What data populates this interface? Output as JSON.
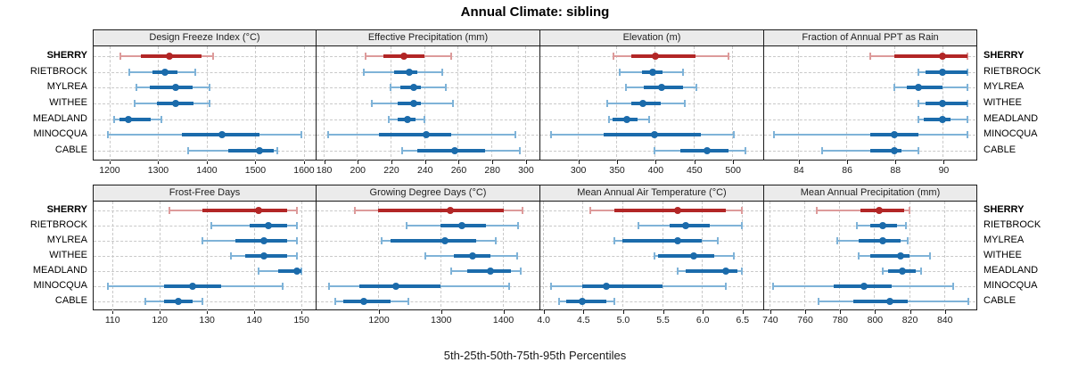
{
  "colors": {
    "series_blue": "#1b6bab",
    "series_blue_light": "#7fb3d8",
    "highlight_red": "#b22626",
    "highlight_red_light": "#dd9b9b",
    "strip_bg": "#ebebeb",
    "panel_border": "#1a1a1a",
    "grid": "#c9c9c9",
    "background": "#ffffff"
  },
  "chart_data": {
    "type": "scatter",
    "subtype": "trellis-percentile-dotplot",
    "title": "Annual Climate: sibling",
    "xlabel": "5th-25th-50th-75th-95th Percentiles",
    "legend_position": "none",
    "grid": "dashed",
    "percentiles": [
      5,
      25,
      50,
      75,
      95
    ],
    "stations": [
      "SHERRY",
      "RIETBROCK",
      "MYLREA",
      "WITHEE",
      "MEADLAND",
      "MINOCQUA",
      "CABLE"
    ],
    "highlight_station": "SHERRY",
    "panels": [
      {
        "label": "Design Freeze Index (°C)",
        "row": 0,
        "col": 0,
        "xlim": [
          1167,
          1624
        ],
        "ticks": [
          1200,
          1300,
          1400,
          1500,
          1600
        ],
        "tick_labels": [
          "1200",
          "1300",
          "1400",
          "1500",
          "1600"
        ],
        "values": {
          "SHERRY": [
            1222,
            1265,
            1323,
            1390,
            1413
          ],
          "RIETBROCK": [
            1240,
            1288,
            1313,
            1340,
            1377
          ],
          "MYLREA": [
            1256,
            1283,
            1336,
            1371,
            1406
          ],
          "WITHEE": [
            1252,
            1297,
            1336,
            1372,
            1405
          ],
          "MEADLAND": [
            1209,
            1220,
            1238,
            1285,
            1306
          ],
          "MINOCQUA": [
            1197,
            1349,
            1432,
            1509,
            1594
          ],
          "CABLE": [
            1361,
            1444,
            1509,
            1537,
            1545
          ]
        }
      },
      {
        "label": "Effective Precipitation (mm)",
        "row": 0,
        "col": 1,
        "xlim": [
          176,
          308
        ],
        "ticks": [
          180,
          200,
          220,
          240,
          260,
          280,
          300
        ],
        "tick_labels": [
          "180",
          "200",
          "220",
          "240",
          "260",
          "280",
          "300"
        ],
        "values": {
          "SHERRY": [
            205,
            216,
            228,
            240,
            256
          ],
          "RIETBROCK": [
            204,
            222,
            231,
            236,
            251
          ],
          "MYLREA": [
            220,
            226,
            234,
            238,
            253
          ],
          "WITHEE": [
            209,
            224,
            234,
            238,
            257
          ],
          "MEADLAND": [
            219,
            224,
            230,
            235,
            240
          ],
          "MINOCQUA": [
            183,
            213,
            241,
            256,
            294
          ],
          "CABLE": [
            227,
            236,
            258,
            276,
            297
          ]
        }
      },
      {
        "label": "Elevation (m)",
        "row": 0,
        "col": 2,
        "xlim": [
          252,
          539
        ],
        "ticks": [
          300,
          350,
          400,
          450,
          500
        ],
        "tick_labels": [
          "300",
          "350",
          "400",
          "450",
          "500"
        ],
        "values": {
          "SHERRY": [
            346,
            370,
            401,
            452,
            495
          ],
          "RIETBROCK": [
            355,
            383,
            397,
            410,
            436
          ],
          "MYLREA": [
            363,
            386,
            409,
            437,
            454
          ],
          "WITHEE": [
            339,
            370,
            384,
            408,
            439
          ],
          "MEADLAND": [
            341,
            345,
            364,
            378,
            393
          ],
          "MINOCQUA": [
            266,
            334,
            400,
            460,
            502
          ],
          "CABLE": [
            399,
            433,
            468,
            495,
            517
          ]
        }
      },
      {
        "label": "Fraction of Annual PPT as Rain",
        "row": 0,
        "col": 3,
        "xlim": [
          82.6,
          91.35
        ],
        "ticks": [
          84,
          86,
          88,
          90
        ],
        "tick_labels": [
          "84",
          "86",
          "88",
          "90"
        ],
        "values": {
          "SHERRY": [
            87,
            88,
            90,
            91,
            91
          ],
          "RIETBROCK": [
            89,
            89.3,
            90,
            91,
            91
          ],
          "MYLREA": [
            88,
            88.5,
            89,
            90,
            91
          ],
          "WITHEE": [
            89,
            89.3,
            90,
            91,
            91
          ],
          "MEADLAND": [
            89,
            89.2,
            90,
            90.3,
            91
          ],
          "MINOCQUA": [
            83,
            87,
            88,
            89,
            91
          ],
          "CABLE": [
            85,
            87,
            88,
            88.3,
            89
          ]
        }
      },
      {
        "label": "Frost-Free Days",
        "row": 1,
        "col": 0,
        "xlim": [
          106,
          153
        ],
        "ticks": [
          110,
          120,
          130,
          140,
          150
        ],
        "tick_labels": [
          "110",
          "120",
          "130",
          "140",
          "150"
        ],
        "values": {
          "SHERRY": [
            122,
            129,
            141,
            147,
            149
          ],
          "RIETBROCK": [
            131,
            139,
            143,
            147,
            149
          ],
          "MYLREA": [
            129,
            136,
            142,
            147,
            149
          ],
          "WITHEE": [
            135,
            138,
            142,
            147,
            149
          ],
          "MEADLAND": [
            141,
            145,
            149,
            150,
            150
          ],
          "MINOCQUA": [
            109,
            121,
            127,
            133,
            146
          ],
          "CABLE": [
            117,
            121,
            124,
            127,
            129
          ]
        }
      },
      {
        "label": "Growing Degree Days (°C)",
        "row": 1,
        "col": 1,
        "xlim": [
          1101,
          1458
        ],
        "ticks": [
          1200,
          1300,
          1400
        ],
        "tick_labels": [
          "1200",
          "1300",
          "1400"
        ],
        "values": {
          "SHERRY": [
            1162,
            1200,
            1316,
            1402,
            1432
          ],
          "RIETBROCK": [
            1246,
            1301,
            1335,
            1374,
            1425
          ],
          "MYLREA": [
            1205,
            1220,
            1308,
            1357,
            1389
          ],
          "WITHEE": [
            1276,
            1322,
            1352,
            1381,
            1423
          ],
          "MEADLAND": [
            1317,
            1343,
            1380,
            1414,
            1429
          ],
          "MINOCQUA": [
            1121,
            1170,
            1229,
            1300,
            1410
          ],
          "CABLE": [
            1131,
            1144,
            1177,
            1220,
            1248
          ]
        }
      },
      {
        "label": "Mean Annual Air Temperature (°C)",
        "row": 1,
        "col": 2,
        "xlim": [
          3.97,
          6.76
        ],
        "ticks": [
          4.0,
          4.5,
          5.0,
          5.5,
          6.0,
          6.5
        ],
        "tick_labels": [
          "4.0",
          "4.5",
          "5.0",
          "5.5",
          "6.0",
          "6.5"
        ],
        "values": {
          "SHERRY": [
            4.6,
            4.9,
            5.7,
            6.3,
            6.5
          ],
          "RIETBROCK": [
            5.2,
            5.6,
            5.8,
            6.1,
            6.5
          ],
          "MYLREA": [
            4.9,
            5.0,
            5.7,
            6.0,
            6.2
          ],
          "WITHEE": [
            5.4,
            5.45,
            5.9,
            6.15,
            6.4
          ],
          "MEADLAND": [
            5.7,
            5.8,
            6.3,
            6.45,
            6.5
          ],
          "MINOCQUA": [
            4.1,
            4.5,
            4.8,
            5.5,
            6.3
          ],
          "CABLE": [
            4.2,
            4.3,
            4.5,
            4.8,
            4.9
          ]
        }
      },
      {
        "label": "Mean Annual Precipitation (mm)",
        "row": 1,
        "col": 3,
        "xlim": [
          737,
          858
        ],
        "ticks": [
          740,
          760,
          780,
          800,
          820,
          840
        ],
        "tick_labels": [
          "740",
          "760",
          "780",
          "800",
          "820",
          "840"
        ],
        "values": {
          "SHERRY": [
            767,
            792,
            803,
            817,
            820
          ],
          "RIETBROCK": [
            790,
            798,
            805,
            813,
            818
          ],
          "MYLREA": [
            779,
            791,
            805,
            815,
            819
          ],
          "WITHEE": [
            791,
            798,
            815,
            820,
            832
          ],
          "MEADLAND": [
            805,
            808,
            816,
            824,
            827
          ],
          "MINOCQUA": [
            742,
            777,
            794,
            810,
            845
          ],
          "CABLE": [
            768,
            788,
            809,
            819,
            854
          ]
        }
      }
    ]
  }
}
